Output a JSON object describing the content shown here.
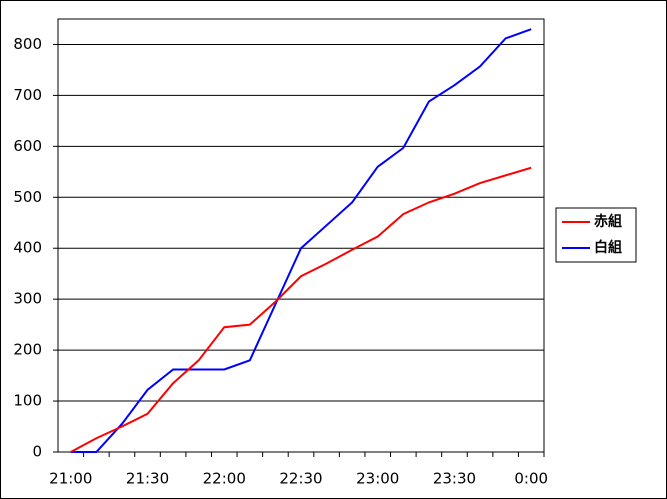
{
  "chart_data": {
    "type": "line",
    "categories": [
      "21:00",
      null,
      null,
      "21:30",
      null,
      null,
      "22:00",
      null,
      null,
      "22:30",
      null,
      null,
      "23:00",
      null,
      null,
      "23:30",
      null,
      null,
      "0:00"
    ],
    "series": [
      {
        "name": "赤組",
        "color": "#ff0000",
        "values": [
          0,
          27,
          50,
          75,
          135,
          180,
          245,
          250,
          295,
          345,
          370,
          397,
          423,
          467,
          490,
          507,
          528,
          543,
          558
        ]
      },
      {
        "name": "白組",
        "color": "#0000ff",
        "values": [
          0,
          0,
          55,
          122,
          162,
          162,
          162,
          180,
          290,
          400,
          445,
          490,
          560,
          597,
          688,
          720,
          757,
          812,
          830
        ]
      }
    ],
    "ylim": [
      0,
      850
    ],
    "yticks": [
      0,
      100,
      200,
      300,
      400,
      500,
      600,
      700,
      800
    ],
    "grid": true,
    "legend": "right"
  }
}
